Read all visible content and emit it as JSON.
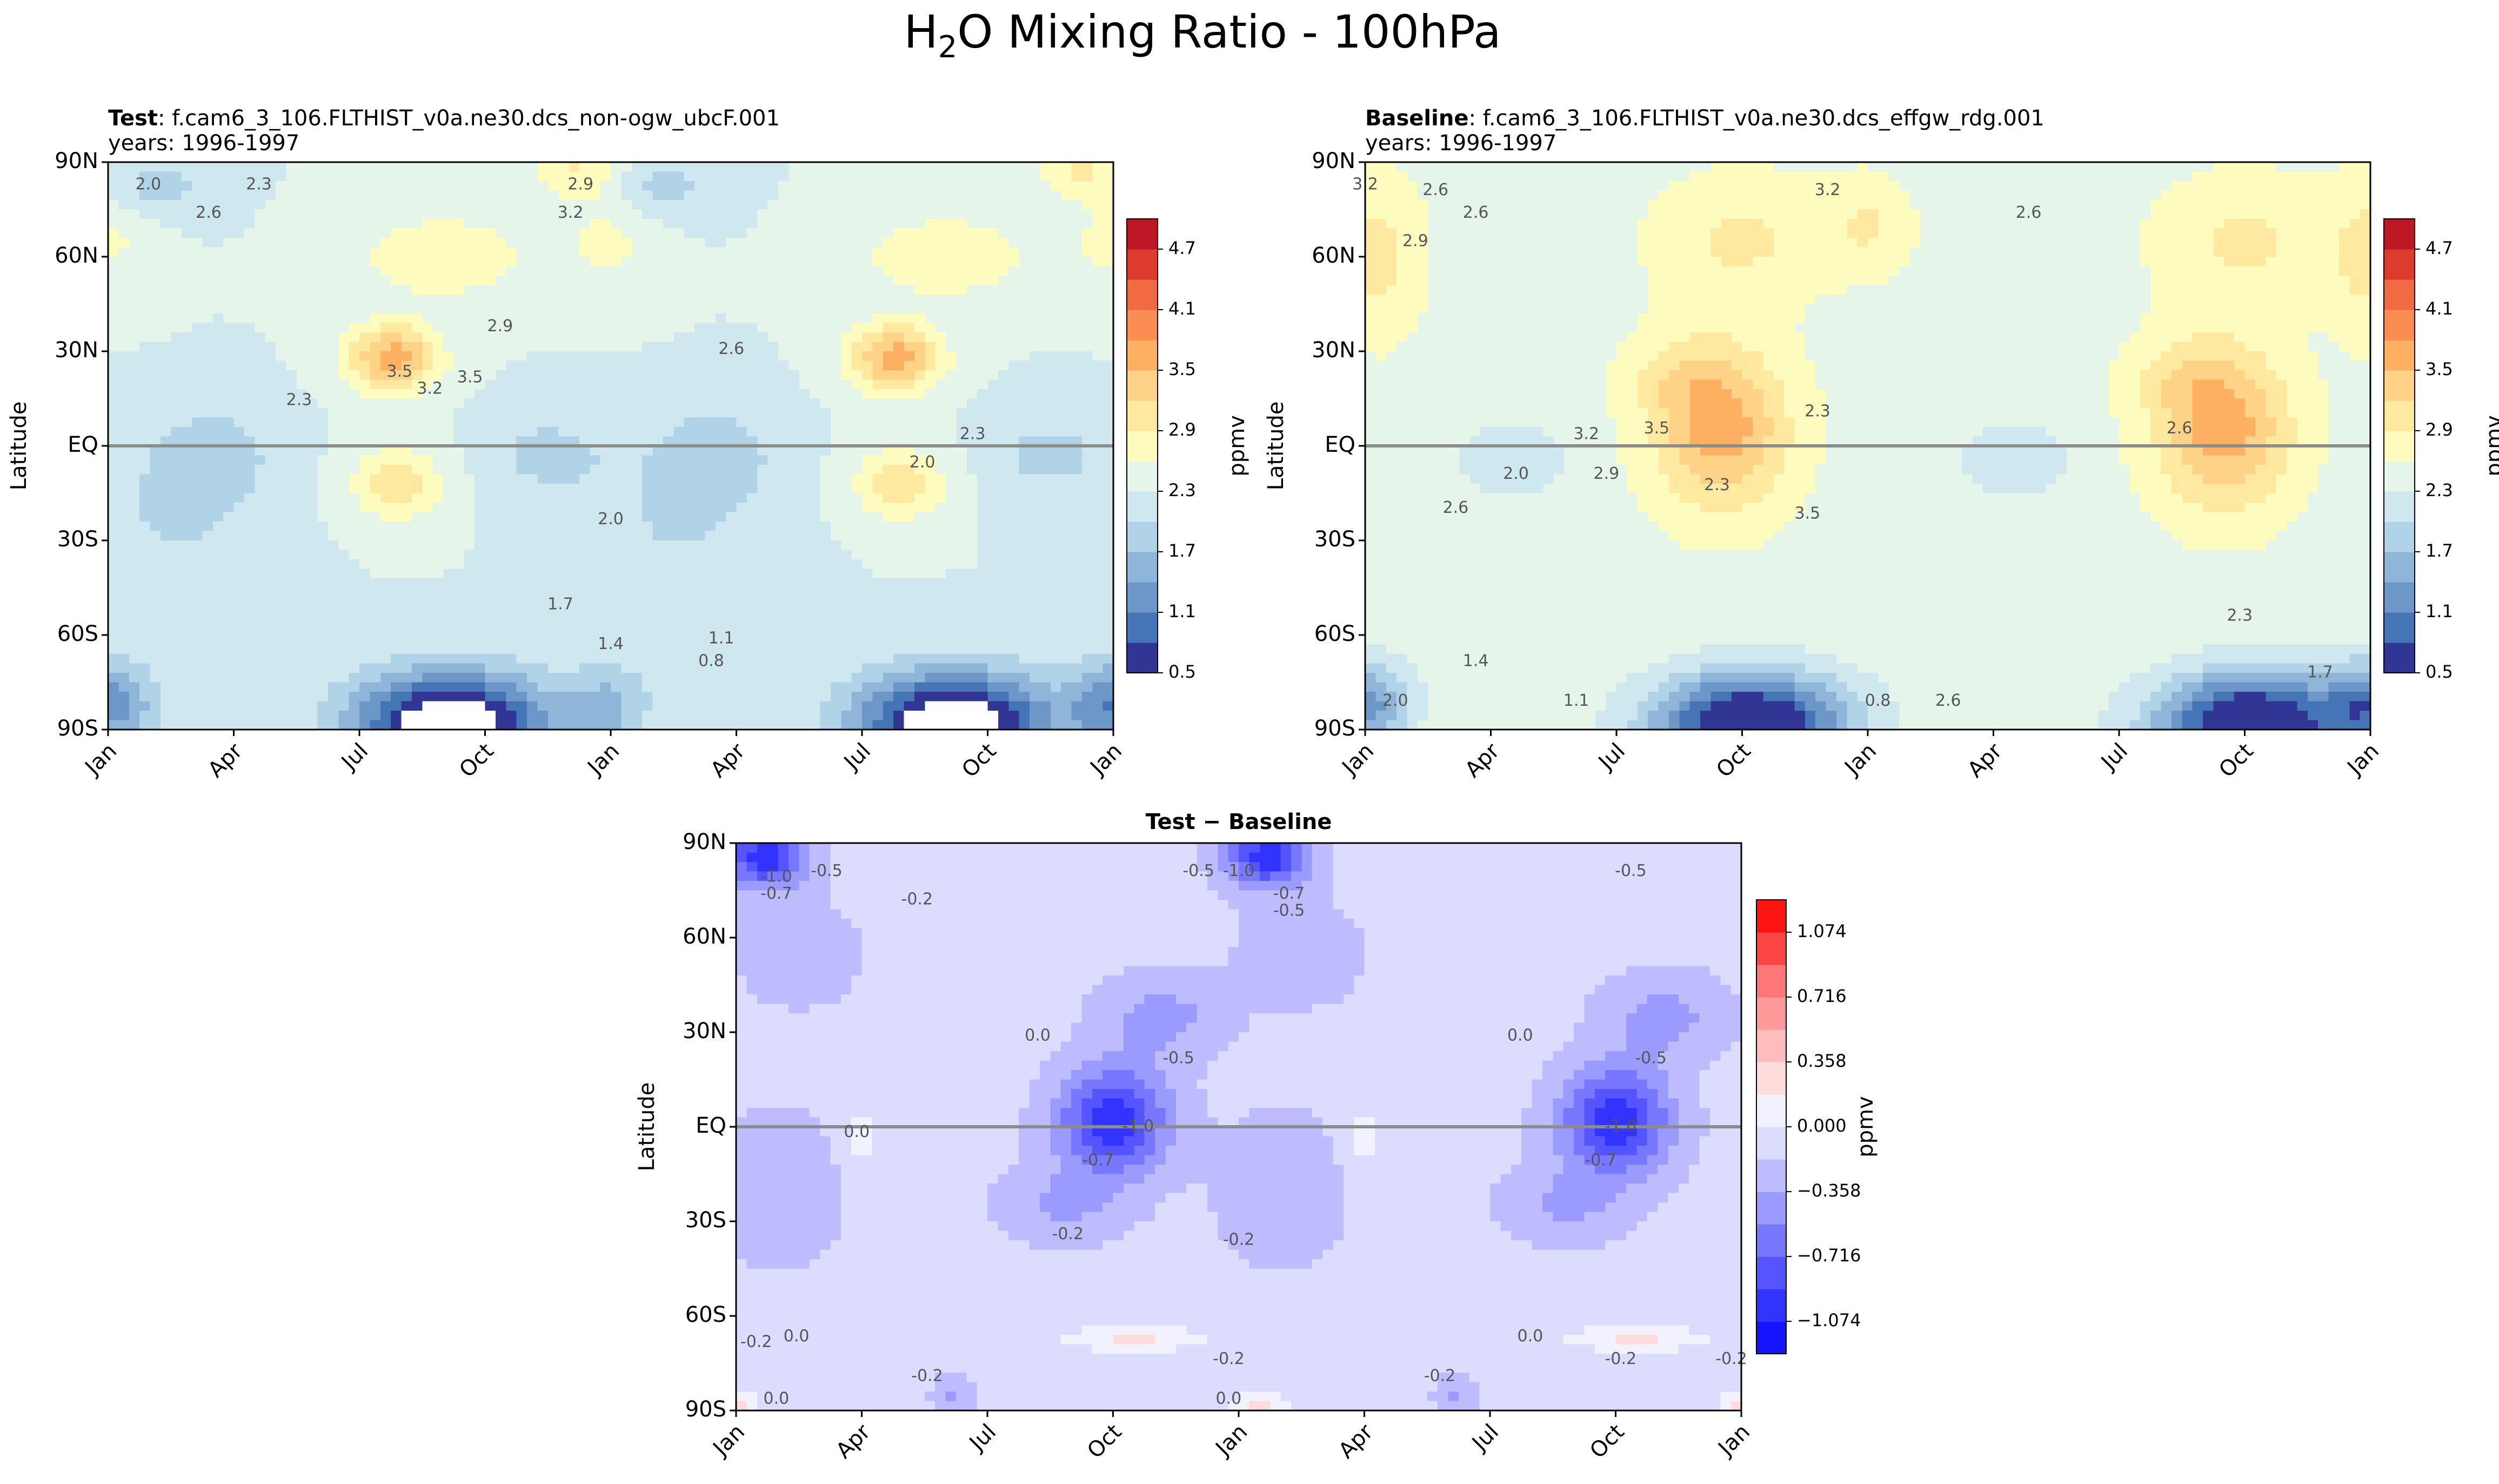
{
  "figure": {
    "title_prefix": "H",
    "title_sub": "2",
    "title_suffix": "O Mixing Ratio - 100hPa"
  },
  "chart_data": [
    {
      "id": "test",
      "type": "heatmap",
      "subtype": "filled-contour",
      "title_bold": "Test",
      "title_rest": ": f.cam6_3_106.FLTHIST_v0a.ne30.dcs_non-ogw_ubcF.001",
      "subtitle": "years: 1996-1997",
      "xlabel": "",
      "ylabel": "Latitude",
      "x_ticks": [
        "Jan",
        "Apr",
        "Jul",
        "Oct",
        "Jan",
        "Apr",
        "Jul",
        "Oct",
        "Jan"
      ],
      "x_months": [
        0,
        3,
        6,
        9,
        12,
        15,
        18,
        21,
        24
      ],
      "xlim": [
        0,
        24
      ],
      "y_ticks": [
        "90N",
        "60N",
        "30N",
        "EQ",
        "30S",
        "60S",
        "90S"
      ],
      "y_values": [
        90,
        60,
        30,
        0,
        -30,
        -60,
        -90
      ],
      "ylim": [
        -90,
        90
      ],
      "colorbar": {
        "label": "ppmv",
        "levels": [
          0.5,
          0.8,
          1.1,
          1.4,
          1.7,
          2.0,
          2.3,
          2.6,
          2.9,
          3.2,
          3.5,
          3.8,
          4.1,
          4.4,
          4.7,
          5.0
        ],
        "colors": [
          "#313695",
          "#4575b4",
          "#6c97c6",
          "#8fb6d8",
          "#b0d3e7",
          "#cfe8ef",
          "#e6f5ea",
          "#fdfbbd",
          "#fee99e",
          "#fed287",
          "#fdb062",
          "#f98d52",
          "#ef6a42",
          "#dc3a2c",
          "#bd1726"
        ],
        "tick_labels": [
          "0.5",
          "1.1",
          "1.7",
          "2.3",
          "2.9",
          "3.5",
          "4.1",
          "4.7"
        ]
      },
      "contour_labels": [
        "2.0",
        "2.3",
        "2.6",
        "2.9",
        "3.2",
        "3.5",
        "1.7",
        "1.4",
        "1.1",
        "0.8",
        "2.3",
        "2.0",
        "2.9",
        "2.6",
        "3.5",
        "3.2",
        "2.0",
        "2.3"
      ],
      "field": {
        "base": 2.3,
        "features": [
          {
            "t": 6.8,
            "lat": 28,
            "st": 1.1,
            "sl": 11,
            "amp": 1.35
          },
          {
            "t": 18.8,
            "lat": 28,
            "st": 1.1,
            "sl": 11,
            "amp": 1.35
          },
          {
            "t": 6.9,
            "lat": -12,
            "st": 1.1,
            "sl": 11,
            "amp": 0.8
          },
          {
            "t": 18.9,
            "lat": -12,
            "st": 1.1,
            "sl": 11,
            "amp": 0.8
          },
          {
            "t": 8.0,
            "lat": 60,
            "st": 2.2,
            "sl": 14,
            "amp": 0.55
          },
          {
            "t": 20.0,
            "lat": 60,
            "st": 2.2,
            "sl": 14,
            "amp": 0.55
          },
          {
            "t": 11.2,
            "lat": 88,
            "st": 1.0,
            "sl": 10,
            "amp": 0.6
          },
          {
            "t": 23.2,
            "lat": 88,
            "st": 1.0,
            "sl": 10,
            "amp": 0.6
          },
          {
            "t": 0.0,
            "lat": 65,
            "st": 1.2,
            "sl": 16,
            "amp": 0.35
          },
          {
            "t": 24.0,
            "lat": 65,
            "st": 1.2,
            "sl": 16,
            "amp": 0.35
          },
          {
            "t": 12.0,
            "lat": 65,
            "st": 1.2,
            "sl": 16,
            "amp": 0.35
          },
          {
            "t": 2.5,
            "lat": -3,
            "st": 1.5,
            "sl": 16,
            "amp": -0.45
          },
          {
            "t": 14.5,
            "lat": -3,
            "st": 1.5,
            "sl": 16,
            "amp": -0.45
          },
          {
            "t": 10.5,
            "lat": -3,
            "st": 1.5,
            "sl": 14,
            "amp": -0.4
          },
          {
            "t": 22.5,
            "lat": -3,
            "st": 1.5,
            "sl": 14,
            "amp": -0.4
          },
          {
            "t": 1.5,
            "lat": -25,
            "st": 2.0,
            "sl": 25,
            "amp": -0.3
          },
          {
            "t": 13.5,
            "lat": -25,
            "st": 2.0,
            "sl": 25,
            "amp": -0.3
          },
          {
            "t": 1.2,
            "lat": 82,
            "st": 1.2,
            "sl": 10,
            "amp": -0.45
          },
          {
            "t": 13.2,
            "lat": 82,
            "st": 1.2,
            "sl": 10,
            "amp": -0.45
          },
          {
            "t": 8.2,
            "lat": -88,
            "st": 2.3,
            "sl": 16,
            "amp": -2.3
          },
          {
            "t": 20.2,
            "lat": -88,
            "st": 2.3,
            "sl": 16,
            "amp": -2.3
          },
          {
            "t": 0.1,
            "lat": -82,
            "st": 1.0,
            "sl": 14,
            "amp": -1.1
          },
          {
            "t": 24.0,
            "lat": -82,
            "st": 1.0,
            "sl": 14,
            "amp": -1.1
          },
          {
            "t": 12.0,
            "lat": -82,
            "st": 1.0,
            "sl": 14,
            "amp": -0.6
          }
        ]
      }
    },
    {
      "id": "baseline",
      "type": "heatmap",
      "subtype": "filled-contour",
      "title_bold": "Baseline",
      "title_rest": ": f.cam6_3_106.FLTHIST_v0a.ne30.dcs_effgw_rdg.001",
      "subtitle": "years: 1996-1997",
      "xlabel": "",
      "ylabel": "Latitude",
      "x_ticks": [
        "Jan",
        "Apr",
        "Jul",
        "Oct",
        "Jan",
        "Apr",
        "Jul",
        "Oct",
        "Jan"
      ],
      "x_months": [
        0,
        3,
        6,
        9,
        12,
        15,
        18,
        21,
        24
      ],
      "xlim": [
        0,
        24
      ],
      "y_ticks": [
        "90N",
        "60N",
        "30N",
        "EQ",
        "30S",
        "60S",
        "90S"
      ],
      "y_values": [
        90,
        60,
        30,
        0,
        -30,
        -60,
        -90
      ],
      "ylim": [
        -90,
        90
      ],
      "colorbar": {
        "label": "ppmv",
        "levels": [
          0.5,
          0.8,
          1.1,
          1.4,
          1.7,
          2.0,
          2.3,
          2.6,
          2.9,
          3.2,
          3.5,
          3.8,
          4.1,
          4.4,
          4.7,
          5.0
        ],
        "colors": [
          "#313695",
          "#4575b4",
          "#6c97c6",
          "#8fb6d8",
          "#b0d3e7",
          "#cfe8ef",
          "#e6f5ea",
          "#fdfbbd",
          "#fee99e",
          "#fed287",
          "#fdb062",
          "#f98d52",
          "#ef6a42",
          "#dc3a2c",
          "#bd1726"
        ],
        "tick_labels": [
          "0.5",
          "1.1",
          "1.7",
          "2.3",
          "2.9",
          "3.5",
          "4.1",
          "4.7"
        ]
      },
      "contour_labels": [
        "3.2",
        "2.6",
        "2.9",
        "2.6",
        "3.2",
        "2.6",
        "2.3",
        "2.9",
        "3.2",
        "3.5",
        "2.0",
        "2.3",
        "2.6",
        "2.3",
        "1.4",
        "1.7",
        "2.0",
        "1.1",
        "0.8",
        "2.6",
        "3.5",
        "2.6"
      ],
      "field": {
        "base": 2.5,
        "features": [
          {
            "t": 8.5,
            "lat": 5,
            "st": 1.6,
            "sl": 25,
            "amp": 1.15
          },
          {
            "t": 20.5,
            "lat": 5,
            "st": 1.6,
            "sl": 25,
            "amp": 1.15
          },
          {
            "t": 7.5,
            "lat": 22,
            "st": 1.3,
            "sl": 14,
            "amp": 0.35
          },
          {
            "t": 19.5,
            "lat": 22,
            "st": 1.3,
            "sl": 14,
            "amp": 0.35
          },
          {
            "t": 9.0,
            "lat": 65,
            "st": 2.0,
            "sl": 20,
            "amp": 0.45
          },
          {
            "t": 21.0,
            "lat": 65,
            "st": 2.0,
            "sl": 20,
            "amp": 0.45
          },
          {
            "t": 0.3,
            "lat": 60,
            "st": 1.0,
            "sl": 25,
            "amp": 0.5
          },
          {
            "t": 24.0,
            "lat": 60,
            "st": 1.0,
            "sl": 25,
            "amp": 0.5
          },
          {
            "t": 12.0,
            "lat": 70,
            "st": 1.0,
            "sl": 15,
            "amp": 0.4
          },
          {
            "t": 3.5,
            "lat": -5,
            "st": 1.3,
            "sl": 12,
            "amp": -0.5
          },
          {
            "t": 15.5,
            "lat": -5,
            "st": 1.3,
            "sl": 12,
            "amp": -0.5
          },
          {
            "t": 9.2,
            "lat": -88,
            "st": 2.3,
            "sl": 16,
            "amp": -2.3
          },
          {
            "t": 21.2,
            "lat": -88,
            "st": 2.3,
            "sl": 16,
            "amp": -2.3
          },
          {
            "t": 0.1,
            "lat": -82,
            "st": 1.0,
            "sl": 14,
            "amp": -1.2
          },
          {
            "t": 24.0,
            "lat": -82,
            "st": 1.0,
            "sl": 14,
            "amp": -1.2
          }
        ]
      }
    },
    {
      "id": "difference",
      "type": "heatmap",
      "subtype": "filled-contour",
      "title_bold": "Test − Baseline",
      "title_rest": "",
      "subtitle": "",
      "xlabel": "",
      "ylabel": "Latitude",
      "x_ticks": [
        "Jan",
        "Apr",
        "Jul",
        "Oct",
        "Jan",
        "Apr",
        "Jul",
        "Oct",
        "Jan"
      ],
      "x_months": [
        0,
        3,
        6,
        9,
        12,
        15,
        18,
        21,
        24
      ],
      "xlim": [
        0,
        24
      ],
      "y_ticks": [
        "90N",
        "60N",
        "30N",
        "EQ",
        "30S",
        "60S",
        "90S"
      ],
      "y_values": [
        90,
        60,
        30,
        0,
        -30,
        -60,
        -90
      ],
      "ylim": [
        -90,
        90
      ],
      "colorbar": {
        "label": "ppmv",
        "levels": [
          -1.253,
          -1.074,
          -0.895,
          -0.716,
          -0.537,
          -0.358,
          -0.179,
          0.0,
          0.179,
          0.358,
          0.537,
          0.716,
          0.895,
          1.074,
          1.253
        ],
        "colors": [
          "#1414ff",
          "#3333ff",
          "#5555ff",
          "#7777ff",
          "#9a9aff",
          "#bcbcff",
          "#dcdcff",
          "#f2f2ff",
          "#ffdcdc",
          "#ffbcbc",
          "#ff9a9a",
          "#ff7777",
          "#ff4444",
          "#ff1414"
        ],
        "tick_labels": [
          "1.074",
          "0.716",
          "0.358",
          "0.000",
          "−0.358",
          "−0.716",
          "−1.074"
        ]
      },
      "contour_labels": [
        "-1.0",
        "-0.7",
        "-0.5",
        "-0.2",
        "-0.5",
        "-0.7",
        "-1.0",
        "-0.5",
        "-0.5",
        "0.0",
        "-0.2",
        "0.0",
        "-0.2",
        "-0.5",
        "-0.5",
        "0.0",
        "-1.0",
        "-0.7",
        "-1.0",
        "-0.7",
        "-0.2",
        "-0.2",
        "-0.2",
        "0.0",
        "0.0",
        "-0.2",
        "-0.2",
        "0.0",
        "0.0",
        "-0.2"
      ],
      "field": {
        "base": -0.12,
        "features": [
          {
            "t": 9.0,
            "lat": 2,
            "st": 1.3,
            "sl": 17,
            "amp": -0.9
          },
          {
            "t": 21.0,
            "lat": 2,
            "st": 1.3,
            "sl": 17,
            "amp": -0.9
          },
          {
            "t": 7.8,
            "lat": -25,
            "st": 1.5,
            "sl": 12,
            "amp": -0.25
          },
          {
            "t": 19.8,
            "lat": -25,
            "st": 1.5,
            "sl": 12,
            "amp": -0.25
          },
          {
            "t": 10.2,
            "lat": 35,
            "st": 1.5,
            "sl": 13,
            "amp": -0.3
          },
          {
            "t": 22.2,
            "lat": 35,
            "st": 1.5,
            "sl": 13,
            "amp": -0.3
          },
          {
            "t": 0.7,
            "lat": 86,
            "st": 1.0,
            "sl": 10,
            "amp": -0.9
          },
          {
            "t": 12.7,
            "lat": 86,
            "st": 1.0,
            "sl": 10,
            "amp": -0.9
          },
          {
            "t": 1.5,
            "lat": 55,
            "st": 1.4,
            "sl": 16,
            "amp": -0.2
          },
          {
            "t": 13.5,
            "lat": 55,
            "st": 1.4,
            "sl": 16,
            "amp": -0.2
          },
          {
            "t": 1.0,
            "lat": -20,
            "st": 1.5,
            "sl": 24,
            "amp": -0.2
          },
          {
            "t": 13.0,
            "lat": -20,
            "st": 1.5,
            "sl": 24,
            "amp": -0.2
          },
          {
            "t": 3.0,
            "lat": -3,
            "st": 0.5,
            "sl": 10,
            "amp": 0.2
          },
          {
            "t": 15.0,
            "lat": -3,
            "st": 0.5,
            "sl": 10,
            "amp": 0.2
          },
          {
            "t": 7.2,
            "lat": 30,
            "st": 0.5,
            "sl": 5,
            "amp": 0.14
          },
          {
            "t": 19.2,
            "lat": 30,
            "st": 0.5,
            "sl": 5,
            "amp": 0.14
          },
          {
            "t": 9.5,
            "lat": -67,
            "st": 1.7,
            "sl": 4,
            "amp": 0.34
          },
          {
            "t": 21.5,
            "lat": -67,
            "st": 1.7,
            "sl": 4,
            "amp": 0.34
          },
          {
            "t": 0.0,
            "lat": -90,
            "st": 0.5,
            "sl": 6,
            "amp": 0.4
          },
          {
            "t": 12.5,
            "lat": -90,
            "st": 0.7,
            "sl": 6,
            "amp": 0.35
          },
          {
            "t": 24.0,
            "lat": -90,
            "st": 0.5,
            "sl": 6,
            "amp": 0.4
          },
          {
            "t": 5.2,
            "lat": -85,
            "st": 0.5,
            "sl": 6,
            "amp": -0.25
          },
          {
            "t": 17.2,
            "lat": -85,
            "st": 0.5,
            "sl": 6,
            "amp": -0.25
          }
        ]
      }
    }
  ]
}
